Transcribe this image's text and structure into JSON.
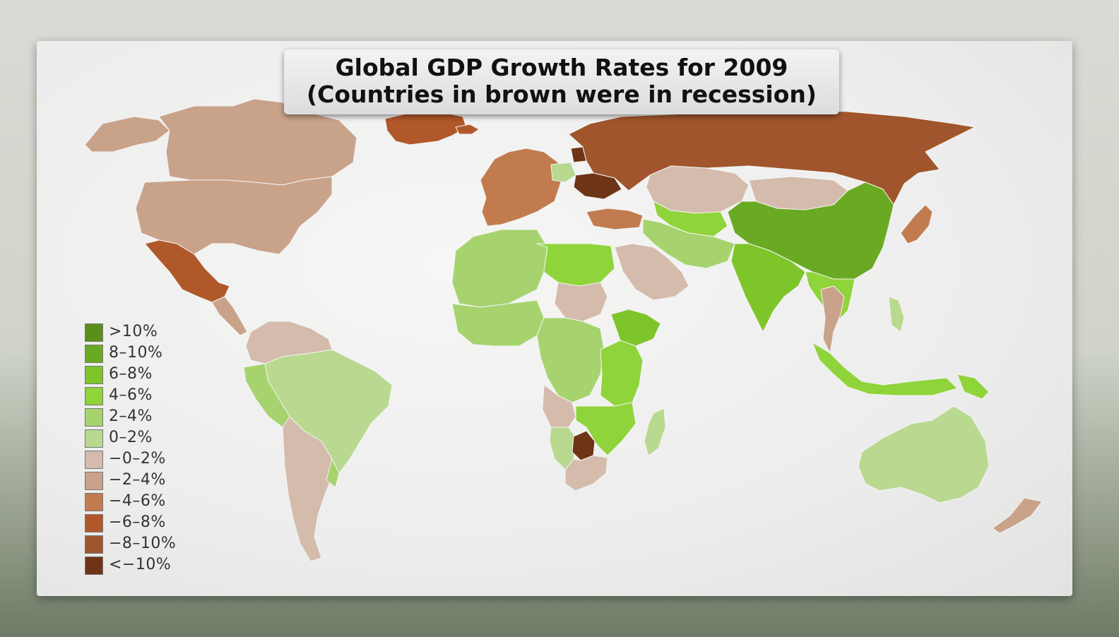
{
  "title": {
    "line1": "Global GDP Growth Rates for 2009",
    "line2": "(Countries in brown were in recession)"
  },
  "legend": [
    {
      "label": ">10%",
      "color": "#5a8f1c"
    },
    {
      "label": "8–10%",
      "color": "#6aaa22"
    },
    {
      "label": "6–8%",
      "color": "#7ec529"
    },
    {
      "label": "4–6%",
      "color": "#8fd43a"
    },
    {
      "label": "2–4%",
      "color": "#a6d36e"
    },
    {
      "label": "0–2%",
      "color": "#b8d98f"
    },
    {
      "label": "−0–2%",
      "color": "#d4bbab"
    },
    {
      "label": "−2–4%",
      "color": "#c9a28a"
    },
    {
      "label": "−4–6%",
      "color": "#c17b4e"
    },
    {
      "label": "−6–8%",
      "color": "#b0582a"
    },
    {
      "label": "−8–10%",
      "color": "#a0552c"
    },
    {
      "label": "<−10%",
      "color": "#6e3416"
    }
  ],
  "regions": [
    {
      "name": "Canada",
      "class": "−2–4%"
    },
    {
      "name": "United States",
      "class": "−2–4%"
    },
    {
      "name": "Alaska",
      "class": "−2–4%"
    },
    {
      "name": "Greenland",
      "class": "−6–8%"
    },
    {
      "name": "Iceland",
      "class": "−6–8%"
    },
    {
      "name": "Mexico",
      "class": "−6–8%"
    },
    {
      "name": "Central America",
      "class": "−2–4%"
    },
    {
      "name": "Colombia & Venezuela",
      "class": "−0–2%"
    },
    {
      "name": "Brazil",
      "class": "0–2%"
    },
    {
      "name": "Peru",
      "class": "2–4%"
    },
    {
      "name": "Argentina & Chile",
      "class": "−0–2%"
    },
    {
      "name": "Uruguay",
      "class": "2–4%"
    },
    {
      "name": "Western Europe",
      "class": "−4–6%"
    },
    {
      "name": "Poland",
      "class": "0–2%"
    },
    {
      "name": "Ukraine",
      "class": "<−10%"
    },
    {
      "name": "Baltic States",
      "class": "<−10%"
    },
    {
      "name": "Russia",
      "class": "−8–10%"
    },
    {
      "name": "Turkey",
      "class": "−4–6%"
    },
    {
      "name": "Kazakhstan",
      "class": "−0–2%"
    },
    {
      "name": "Mongolia",
      "class": "−0–2%"
    },
    {
      "name": "China",
      "class": "8–10%"
    },
    {
      "name": "India",
      "class": "6–8%"
    },
    {
      "name": "Central Asia",
      "class": "4–6%"
    },
    {
      "name": "Iran & Afghanistan",
      "class": "2–4%"
    },
    {
      "name": "Saudi Arabia",
      "class": "−0–2%"
    },
    {
      "name": "Southeast Asia",
      "class": "4–6%"
    },
    {
      "name": "Thailand",
      "class": "−2–4%"
    },
    {
      "name": "Japan",
      "class": "−4–6%"
    },
    {
      "name": "Indonesia",
      "class": "4–6%"
    },
    {
      "name": "Philippines",
      "class": "0–2%"
    },
    {
      "name": "Papua New Guinea",
      "class": "4–6%"
    },
    {
      "name": "Australia",
      "class": "0–2%"
    },
    {
      "name": "New Zealand",
      "class": "−2–4%"
    },
    {
      "name": "North Africa",
      "class": "2–4%"
    },
    {
      "name": "Libya & Egypt",
      "class": "4–6%"
    },
    {
      "name": "Sudan",
      "class": "−0–2%"
    },
    {
      "name": "Ethiopia",
      "class": "6–8%"
    },
    {
      "name": "West Africa",
      "class": "2–4%"
    },
    {
      "name": "Central Africa",
      "class": "2–4%"
    },
    {
      "name": "East Africa",
      "class": "4–6%"
    },
    {
      "name": "Angola",
      "class": "−0–2%"
    },
    {
      "name": "Zambia & Mozambique",
      "class": "4–6%"
    },
    {
      "name": "Namibia",
      "class": "0–2%"
    },
    {
      "name": "Botswana",
      "class": "<−10%"
    },
    {
      "name": "South Africa",
      "class": "−0–2%"
    },
    {
      "name": "Madagascar",
      "class": "0–2%"
    }
  ]
}
